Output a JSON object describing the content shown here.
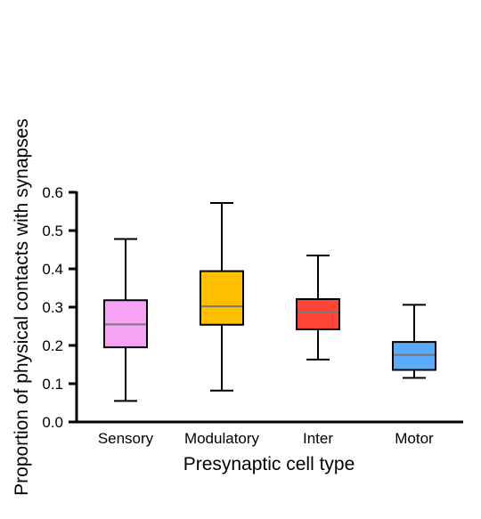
{
  "chart_data": {
    "type": "box",
    "title": "",
    "xlabel": "Presynaptic cell type",
    "ylabel": "Proportion of physical contacts with synapses",
    "ylim": [
      0,
      0.6
    ],
    "yticks": [
      "0.0",
      "0.1",
      "0.2",
      "0.3",
      "0.4",
      "0.5",
      "0.6"
    ],
    "grid": false,
    "categories": [
      "Sensory",
      "Modulatory",
      "Inter",
      "Motor"
    ],
    "series": [
      {
        "category": "Sensory",
        "min": 0.055,
        "q1": 0.195,
        "median": 0.255,
        "q3": 0.318,
        "max": 0.478,
        "color": "#f7a3f5"
      },
      {
        "category": "Modulatory",
        "min": 0.082,
        "q1": 0.254,
        "median": 0.302,
        "q3": 0.394,
        "max": 0.572,
        "color": "#ffc000"
      },
      {
        "category": "Inter",
        "min": 0.163,
        "q1": 0.242,
        "median": 0.287,
        "q3": 0.321,
        "max": 0.435,
        "color": "#ff4433"
      },
      {
        "category": "Motor",
        "min": 0.115,
        "q1": 0.136,
        "median": 0.175,
        "q3": 0.209,
        "max": 0.306,
        "color": "#5aabfa"
      }
    ]
  },
  "colors": {
    "axis": "#000000",
    "median_line": "#777777"
  }
}
